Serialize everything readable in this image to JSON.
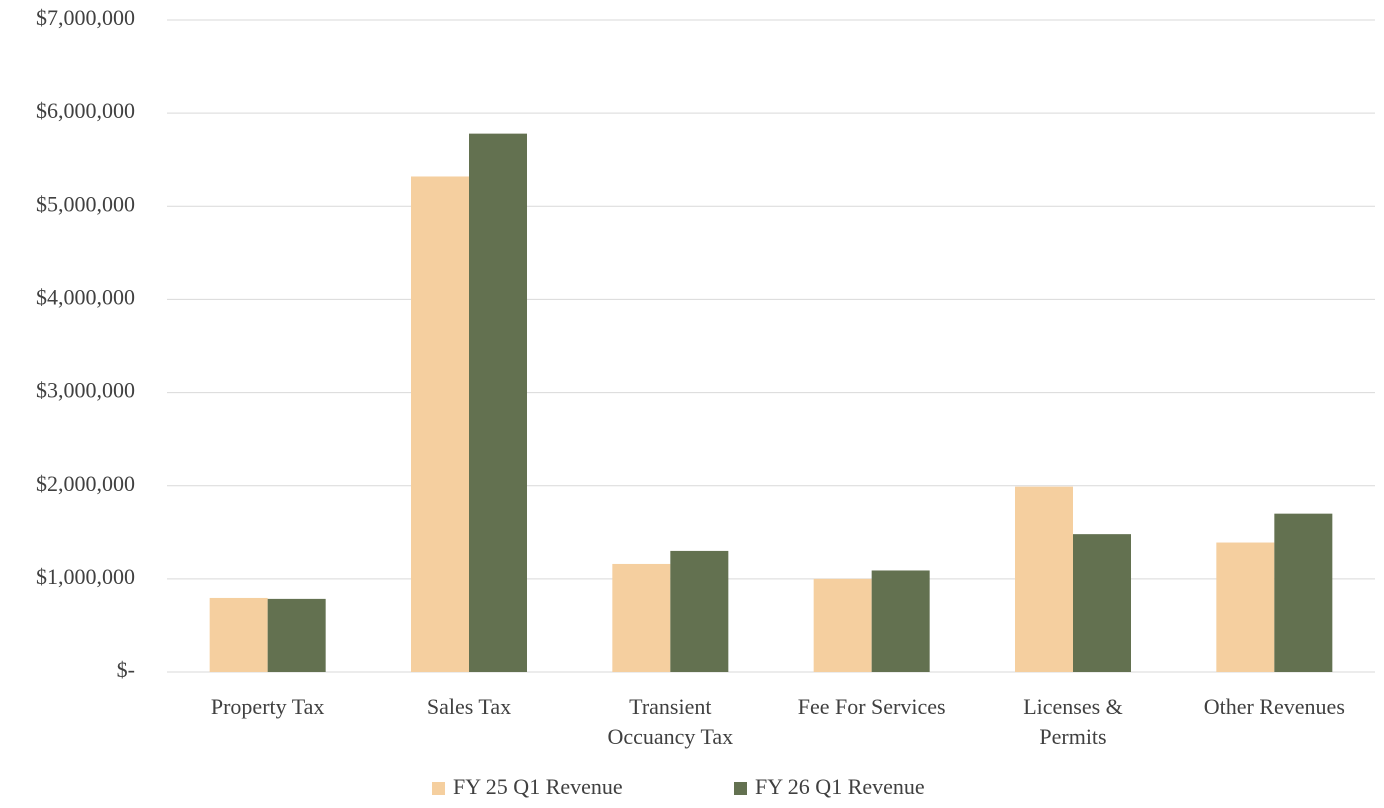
{
  "chart_data": {
    "type": "bar",
    "categories": [
      "Property Tax",
      "Sales Tax",
      "Transient Occuancy Tax",
      "Fee For Services",
      "Licenses & Permits",
      "Other Revenues"
    ],
    "series": [
      {
        "name": "FY 25 Q1 Revenue",
        "color": "#f5cf9f",
        "values": [
          795000,
          5320000,
          1160000,
          1000000,
          1990000,
          1390000
        ]
      },
      {
        "name": "FY 26 Q1 Revenue",
        "color": "#637150",
        "values": [
          785000,
          5780000,
          1300000,
          1090000,
          1480000,
          1700000
        ]
      }
    ],
    "ylim": [
      0,
      7000000
    ],
    "yticks": [
      {
        "value": 0,
        "label": "$-"
      },
      {
        "value": 1000000,
        "label": "$1,000,000"
      },
      {
        "value": 2000000,
        "label": "$2,000,000"
      },
      {
        "value": 3000000,
        "label": "$3,000,000"
      },
      {
        "value": 4000000,
        "label": "$4,000,000"
      },
      {
        "value": 5000000,
        "label": "$5,000,000"
      },
      {
        "value": 6000000,
        "label": "$6,000,000"
      },
      {
        "value": 7000000,
        "label": "$7,000,000"
      }
    ],
    "grid": true,
    "legend": "bottom"
  }
}
